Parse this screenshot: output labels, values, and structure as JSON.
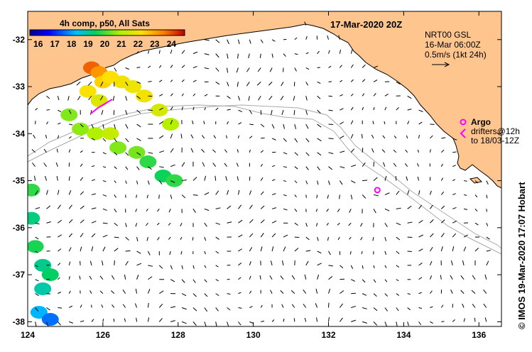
{
  "colorbar": {
    "title": "4h comp, p50, All Sats",
    "ticks": [
      "16",
      "17",
      "18",
      "19",
      "20",
      "21",
      "22",
      "23",
      "24"
    ],
    "min": 15.5,
    "max": 24.8
  },
  "header": {
    "date": "17-Mar-2020 20Z"
  },
  "current_legend": {
    "line1": "NRT00 GSL",
    "line2": "16-Mar 06:00Z",
    "line3": "0.5m/s (1kt 24h)"
  },
  "argo": {
    "label": "Argo",
    "line2": "drifters@12h",
    "line3": "to 18/03-12Z",
    "float_lon": 133.3,
    "float_lat": -35.2
  },
  "attribution": "© IMOS 19-Mar-2020 17:07 Hobart",
  "axes": {
    "x_ticks": [
      "124",
      "126",
      "128",
      "130",
      "132",
      "134",
      "136"
    ],
    "x_values": [
      124,
      126,
      128,
      130,
      132,
      134,
      136
    ],
    "y_ticks": [
      "-32",
      "-33",
      "-34",
      "-35",
      "-36",
      "-37",
      "-38"
    ],
    "y_values": [
      -32,
      -33,
      -34,
      -35,
      -36,
      -37,
      -38
    ],
    "lon_range": [
      124,
      136.6
    ],
    "lat_range": [
      -38.1,
      -31.4
    ]
  },
  "colors": {
    "land": "#ffc58f",
    "coast": "#000000",
    "arrows": "#000000",
    "isobath": "#aaaaaa",
    "argo": "#ff00ff"
  },
  "sst_patches": [
    {
      "lon": 125.7,
      "lat": -32.6,
      "value": 23.8
    },
    {
      "lon": 125.9,
      "lat": -32.7,
      "value": 23.2
    },
    {
      "lon": 126.0,
      "lat": -32.9,
      "value": 22.4
    },
    {
      "lon": 126.2,
      "lat": -32.8,
      "value": 22.2
    },
    {
      "lon": 126.5,
      "lat": -32.9,
      "value": 22.0
    },
    {
      "lon": 126.8,
      "lat": -33.0,
      "value": 21.9
    },
    {
      "lon": 127.1,
      "lat": -33.2,
      "value": 22.0
    },
    {
      "lon": 125.6,
      "lat": -33.1,
      "value": 22.1
    },
    {
      "lon": 125.9,
      "lat": -33.3,
      "value": 21.6
    },
    {
      "lon": 127.5,
      "lat": -33.5,
      "value": 21.5
    },
    {
      "lon": 127.8,
      "lat": -33.8,
      "value": 21.0
    },
    {
      "lon": 125.1,
      "lat": -33.6,
      "value": 20.5
    },
    {
      "lon": 125.4,
      "lat": -33.9,
      "value": 20.6
    },
    {
      "lon": 125.8,
      "lat": -34.0,
      "value": 20.9
    },
    {
      "lon": 126.2,
      "lat": -34.0,
      "value": 21.2
    },
    {
      "lon": 126.4,
      "lat": -34.3,
      "value": 20.5
    },
    {
      "lon": 126.9,
      "lat": -34.4,
      "value": 20.4
    },
    {
      "lon": 127.2,
      "lat": -34.6,
      "value": 19.8
    },
    {
      "lon": 127.6,
      "lat": -34.9,
      "value": 19.5
    },
    {
      "lon": 127.9,
      "lat": -35.0,
      "value": 19.8
    },
    {
      "lon": 124.1,
      "lat": -35.2,
      "value": 19.8
    },
    {
      "lon": 124.1,
      "lat": -35.8,
      "value": 19.2
    },
    {
      "lon": 124.2,
      "lat": -36.4,
      "value": 19.6
    },
    {
      "lon": 124.4,
      "lat": -36.8,
      "value": 19.1
    },
    {
      "lon": 124.6,
      "lat": -37.0,
      "value": 19.4
    },
    {
      "lon": 124.4,
      "lat": -37.3,
      "value": 18.9
    },
    {
      "lon": 124.3,
      "lat": -37.8,
      "value": 18.2
    },
    {
      "lon": 124.6,
      "lat": -37.95,
      "value": 17.6
    }
  ]
}
